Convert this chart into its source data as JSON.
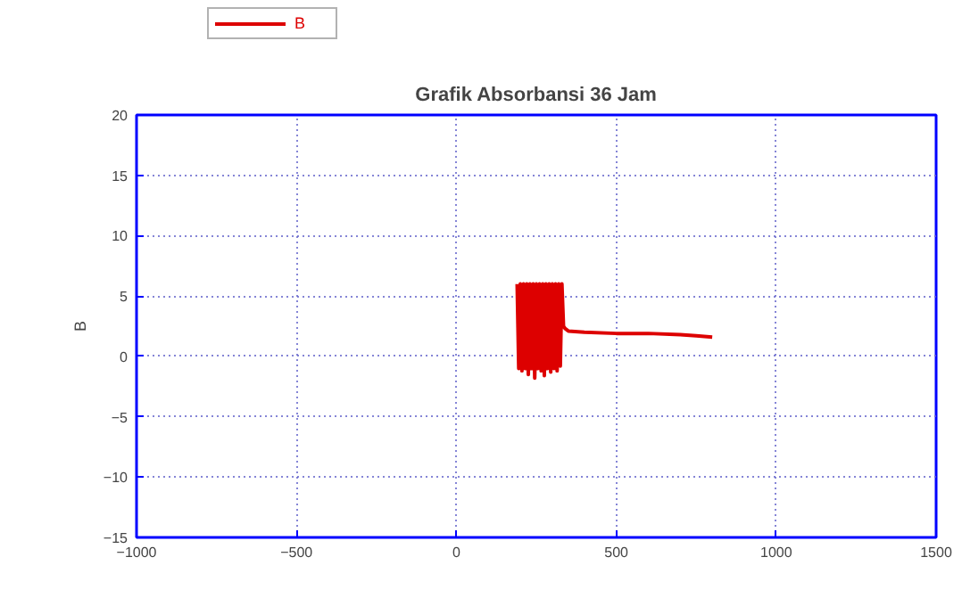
{
  "chart_data": {
    "type": "line",
    "title": "Grafik Absorbansi 36 Jam",
    "ylabel": "B",
    "xlim": [
      -1000,
      1500
    ],
    "xticks": [
      -1000,
      -500,
      0,
      500,
      1000,
      1500
    ],
    "ylim": [
      -15,
      20
    ],
    "yticks": [
      -15,
      -10,
      -5,
      0,
      5,
      10,
      15,
      20
    ],
    "grid": true,
    "legend": "top left",
    "line_style": "solid",
    "series": [
      {
        "name": "B",
        "color": "#dd0000",
        "x": [
          190,
          195,
          200,
          205,
          210,
          215,
          220,
          225,
          230,
          235,
          240,
          245,
          250,
          255,
          260,
          265,
          270,
          275,
          280,
          285,
          290,
          295,
          300,
          305,
          310,
          315,
          320,
          325,
          330,
          335,
          340,
          350,
          400,
          500,
          600,
          700,
          750,
          800
        ],
        "values": [
          6,
          -1,
          6,
          -1.2,
          6,
          -1,
          6,
          -1.5,
          6,
          -1,
          6,
          -1.8,
          6,
          -1,
          6,
          -1.2,
          6,
          -1.6,
          6,
          -1,
          6,
          -1.3,
          6,
          -1,
          6,
          -1.2,
          6,
          -0.8,
          6,
          2.5,
          2.3,
          2.1,
          2.0,
          1.9,
          1.9,
          1.8,
          1.7,
          1.6
        ]
      }
    ]
  }
}
